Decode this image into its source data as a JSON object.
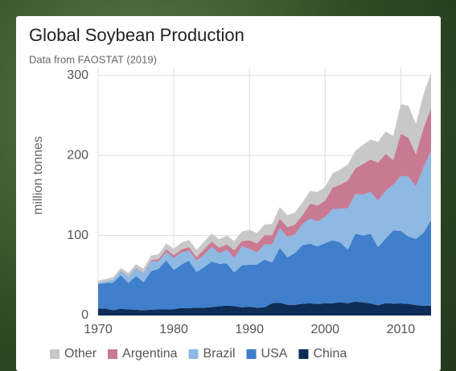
{
  "chart_data": {
    "type": "stacked-area",
    "title": "Global Soybean Production",
    "subtitle": "Data from FAOSTAT (2019)",
    "y_label": "million tonnes",
    "x": [
      1970,
      1971,
      1972,
      1973,
      1974,
      1975,
      1976,
      1977,
      1978,
      1979,
      1980,
      1981,
      1982,
      1983,
      1984,
      1985,
      1986,
      1987,
      1988,
      1989,
      1990,
      1991,
      1992,
      1993,
      1994,
      1995,
      1996,
      1997,
      1998,
      1999,
      2000,
      2001,
      2002,
      2003,
      2004,
      2005,
      2006,
      2007,
      2008,
      2009,
      2010,
      2011,
      2012,
      2013,
      2014
    ],
    "xlim": [
      1970,
      2014
    ],
    "xticks": [
      1970,
      1980,
      1990,
      2000,
      2010
    ],
    "ylim": [
      0,
      310
    ],
    "yticks": [
      0,
      100,
      200,
      300
    ],
    "grid": true,
    "legend": "bottom",
    "series": [
      {
        "name": "China",
        "color": "#0d2d57",
        "values": [
          8.7,
          8.6,
          6.5,
          8.4,
          7.5,
          7.2,
          6.6,
          7.3,
          7.6,
          7.5,
          7.9,
          9.3,
          9.0,
          9.8,
          9.7,
          10.5,
          11.6,
          12.5,
          11.6,
          10.2,
          11.0,
          9.7,
          10.3,
          15.3,
          16.0,
          13.5,
          13.2,
          14.7,
          15.2,
          14.3,
          15.4,
          15.4,
          16.5,
          15.4,
          17.4,
          16.4,
          15.1,
          12.7,
          15.5,
          14.9,
          15.1,
          14.5,
          13.0,
          12.0,
          12.2
        ]
      },
      {
        "name": "USA",
        "color": "#3f7fcb",
        "values": [
          30.7,
          32.0,
          34.6,
          42.1,
          33.1,
          42.1,
          35.1,
          48.1,
          50.9,
          61.5,
          48.9,
          54.4,
          59.6,
          44.5,
          50.6,
          57.1,
          52.9,
          52.7,
          42.2,
          52.4,
          52.4,
          54.1,
          59.6,
          50.9,
          68.4,
          59.2,
          64.8,
          73.2,
          74.6,
          72.2,
          75.1,
          78.7,
          75.0,
          66.8,
          85.0,
          83.5,
          87.0,
          72.9,
          80.7,
          91.4,
          90.6,
          84.3,
          82.8,
          91.4,
          106.9
        ]
      },
      {
        "name": "Brazil",
        "color": "#8db9e3",
        "values": [
          1.5,
          2.1,
          3.7,
          5.0,
          7.9,
          9.9,
          11.2,
          12.5,
          9.5,
          10.2,
          15.2,
          15.0,
          12.8,
          14.6,
          15.5,
          18.3,
          13.3,
          17.0,
          18.0,
          24.0,
          19.9,
          15.0,
          19.2,
          22.6,
          25.0,
          25.7,
          23.2,
          26.4,
          31.3,
          31.0,
          32.8,
          39.0,
          42.1,
          51.9,
          49.5,
          51.2,
          52.5,
          57.9,
          59.8,
          57.3,
          68.8,
          74.8,
          65.8,
          81.7,
          86.8
        ]
      },
      {
        "name": "Argentina",
        "color": "#c97a93",
        "values": [
          0.03,
          0.06,
          0.08,
          0.5,
          0.5,
          0.5,
          0.7,
          1.4,
          2.5,
          3.7,
          3.5,
          3.8,
          4.2,
          4.0,
          7.0,
          6.5,
          7.1,
          6.7,
          9.9,
          6.5,
          10.7,
          11.3,
          11.3,
          11.7,
          11.7,
          12.1,
          12.4,
          11.0,
          18.7,
          20.0,
          20.2,
          26.9,
          30.0,
          34.8,
          32.0,
          38.3,
          40.5,
          47.5,
          46.2,
          30.9,
          52.7,
          48.9,
          40.1,
          49.3,
          53.4
        ]
      },
      {
        "name": "Other",
        "color": "#c8c8c8",
        "values": [
          2.5,
          2.8,
          3,
          3.5,
          4,
          4.5,
          5,
          5.5,
          6,
          7,
          8,
          8.5,
          9,
          9,
          9.5,
          10,
          10.5,
          11,
          11.5,
          12,
          13,
          13,
          13.5,
          14,
          14.5,
          15,
          15,
          16,
          16,
          17,
          17,
          18,
          19,
          20,
          22,
          24,
          25,
          26,
          28,
          30,
          37,
          40,
          38,
          42,
          44
        ]
      }
    ]
  }
}
